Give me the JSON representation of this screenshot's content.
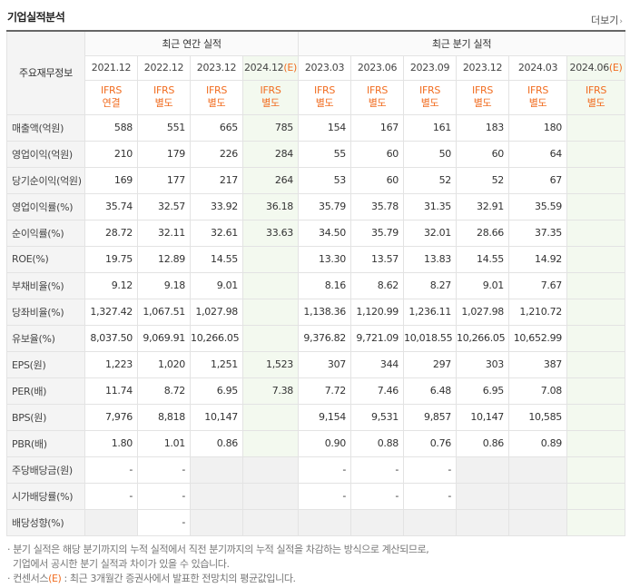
{
  "title": "기업실적분석",
  "more_label": "더보기",
  "header": {
    "row_label": "주요재무정보",
    "group_annual": "최근 연간 실적",
    "group_quarter": "최근 분기 실적",
    "periods": [
      "2021.12",
      "2022.12",
      "2023.12",
      "2024.12",
      "2023.03",
      "2023.06",
      "2023.09",
      "2023.12",
      "2024.03",
      "2024.06"
    ],
    "estimate_marker": "(E)",
    "accounting_top": "IFRS",
    "accounting": [
      "연결",
      "별도",
      "별도",
      "별도",
      "별도",
      "별도",
      "별도",
      "별도",
      "별도",
      "별도"
    ]
  },
  "rows": [
    {
      "label": "매출액(억원)",
      "values": [
        "588",
        "551",
        "665",
        "785",
        "154",
        "167",
        "161",
        "183",
        "180",
        ""
      ]
    },
    {
      "label": "영업이익(억원)",
      "values": [
        "210",
        "179",
        "226",
        "284",
        "55",
        "60",
        "50",
        "60",
        "64",
        ""
      ]
    },
    {
      "label": "당기순이익(억원)",
      "values": [
        "169",
        "177",
        "217",
        "264",
        "53",
        "60",
        "52",
        "52",
        "67",
        ""
      ]
    },
    {
      "label": "영업이익률(%)",
      "values": [
        "35.74",
        "32.57",
        "33.92",
        "36.18",
        "35.79",
        "35.78",
        "31.35",
        "32.91",
        "35.59",
        ""
      ]
    },
    {
      "label": "순이익률(%)",
      "values": [
        "28.72",
        "32.11",
        "32.61",
        "33.63",
        "34.50",
        "35.79",
        "32.01",
        "28.66",
        "37.35",
        ""
      ]
    },
    {
      "label": "ROE(%)",
      "values": [
        "19.75",
        "12.89",
        "14.55",
        "",
        "13.30",
        "13.57",
        "13.83",
        "14.55",
        "14.92",
        ""
      ]
    },
    {
      "label": "부채비율(%)",
      "values": [
        "9.12",
        "9.18",
        "9.01",
        "",
        "8.16",
        "8.62",
        "8.27",
        "9.01",
        "7.67",
        ""
      ]
    },
    {
      "label": "당좌비율(%)",
      "values": [
        "1,327.42",
        "1,067.51",
        "1,027.98",
        "",
        "1,138.36",
        "1,120.99",
        "1,236.11",
        "1,027.98",
        "1,210.72",
        ""
      ]
    },
    {
      "label": "유보율(%)",
      "values": [
        "8,037.50",
        "9,069.91",
        "10,266.05",
        "",
        "9,376.82",
        "9,721.09",
        "10,018.55",
        "10,266.05",
        "10,652.99",
        ""
      ]
    },
    {
      "label": "EPS(원)",
      "values": [
        "1,223",
        "1,020",
        "1,251",
        "1,523",
        "307",
        "344",
        "297",
        "303",
        "387",
        ""
      ]
    },
    {
      "label": "PER(배)",
      "values": [
        "11.74",
        "8.72",
        "6.95",
        "7.38",
        "7.72",
        "7.46",
        "6.48",
        "6.95",
        "7.08",
        ""
      ]
    },
    {
      "label": "BPS(원)",
      "values": [
        "7,976",
        "8,818",
        "10,147",
        "",
        "9,154",
        "9,531",
        "9,857",
        "10,147",
        "10,585",
        ""
      ]
    },
    {
      "label": "PBR(배)",
      "values": [
        "1.80",
        "1.01",
        "0.86",
        "",
        "0.90",
        "0.88",
        "0.76",
        "0.86",
        "0.89",
        ""
      ]
    },
    {
      "label": "주당배당금(원)",
      "values": [
        "-",
        "-",
        "",
        "",
        "-",
        "-",
        "-",
        "",
        "",
        ""
      ]
    },
    {
      "label": "시가배당률(%)",
      "values": [
        "-",
        "-",
        "",
        "",
        "-",
        "-",
        "-",
        "",
        "",
        ""
      ]
    },
    {
      "label": "배당성향(%)",
      "values": [
        "",
        "-",
        "",
        "",
        "",
        "",
        "",
        "",
        "",
        ""
      ]
    }
  ],
  "notes": {
    "line1": "· 분기 실적은 해당 분기까지의 누적 실적에서 직전 분기까지의 누적 실적을 차감하는 방식으로 계산되므로,",
    "line2": "  기업에서 공시한 분기 실적과 차이가 있을 수 있습니다.",
    "line3_pre": "· 컨센서스",
    "line3_marker": "(E)",
    "line3_post": " : 최근 3개월간 증권사에서 발표한 전망치의 평균값입니다."
  }
}
